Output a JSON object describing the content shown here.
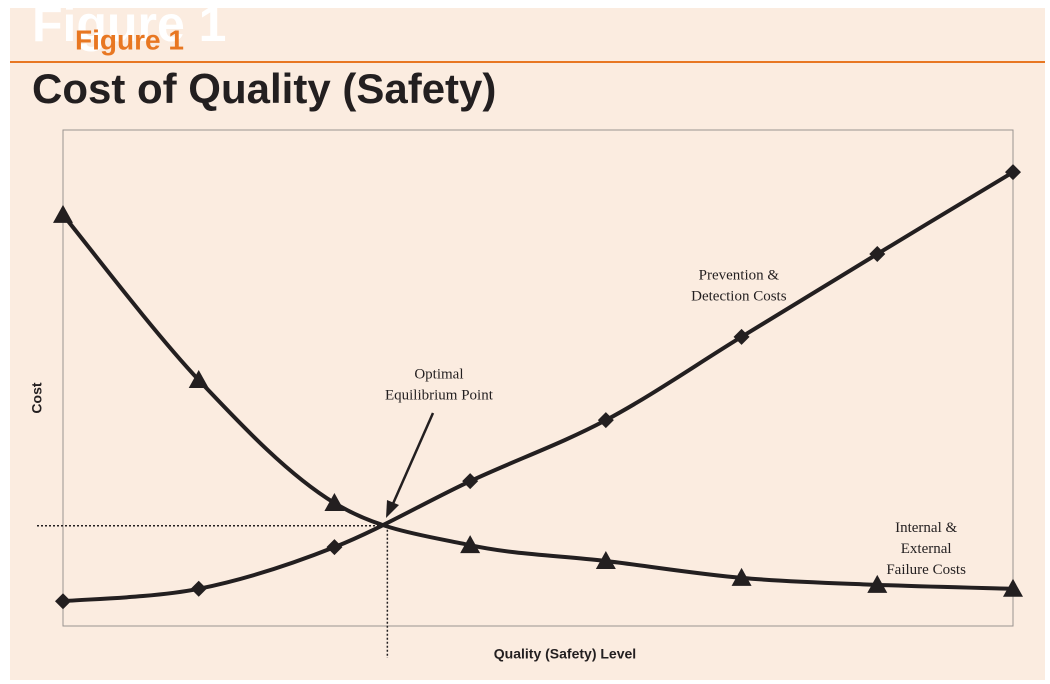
{
  "chart_data": {
    "type": "line",
    "figure_label": "Figure 1",
    "title": "Cost of Quality (Safety)",
    "x_label": "Quality (Safety) Level",
    "y_label": "Cost",
    "x": [
      0,
      1,
      2,
      3,
      4,
      5,
      6,
      7
    ],
    "xlim": [
      0,
      7
    ],
    "ylim": [
      0,
      100
    ],
    "series": [
      {
        "marker": "diamond",
        "color": "#231f20",
        "values": [
          5.0,
          7.5,
          15.9,
          29.2,
          41.5,
          58.3,
          75.0,
          91.5
        ]
      },
      {
        "marker": "triangle",
        "color": "#231f20",
        "values": [
          82.9,
          49.6,
          24.8,
          16.3,
          13.1,
          9.7,
          8.3,
          7.5
        ]
      }
    ],
    "equilibrium": {
      "x": 2.39,
      "y": 20.2
    },
    "annotations": [
      {
        "lines": [
          "Prevention &",
          "Detection Costs"
        ],
        "x": 4.98,
        "y": 70.5
      },
      {
        "lines": [
          "Internal &",
          "External",
          "Failure Costs"
        ],
        "x": 6.36,
        "y": 19.6
      },
      {
        "lines": [
          "Optimal",
          "Equilibrium Point"
        ],
        "x": 2.77,
        "y": 50.5
      }
    ]
  }
}
